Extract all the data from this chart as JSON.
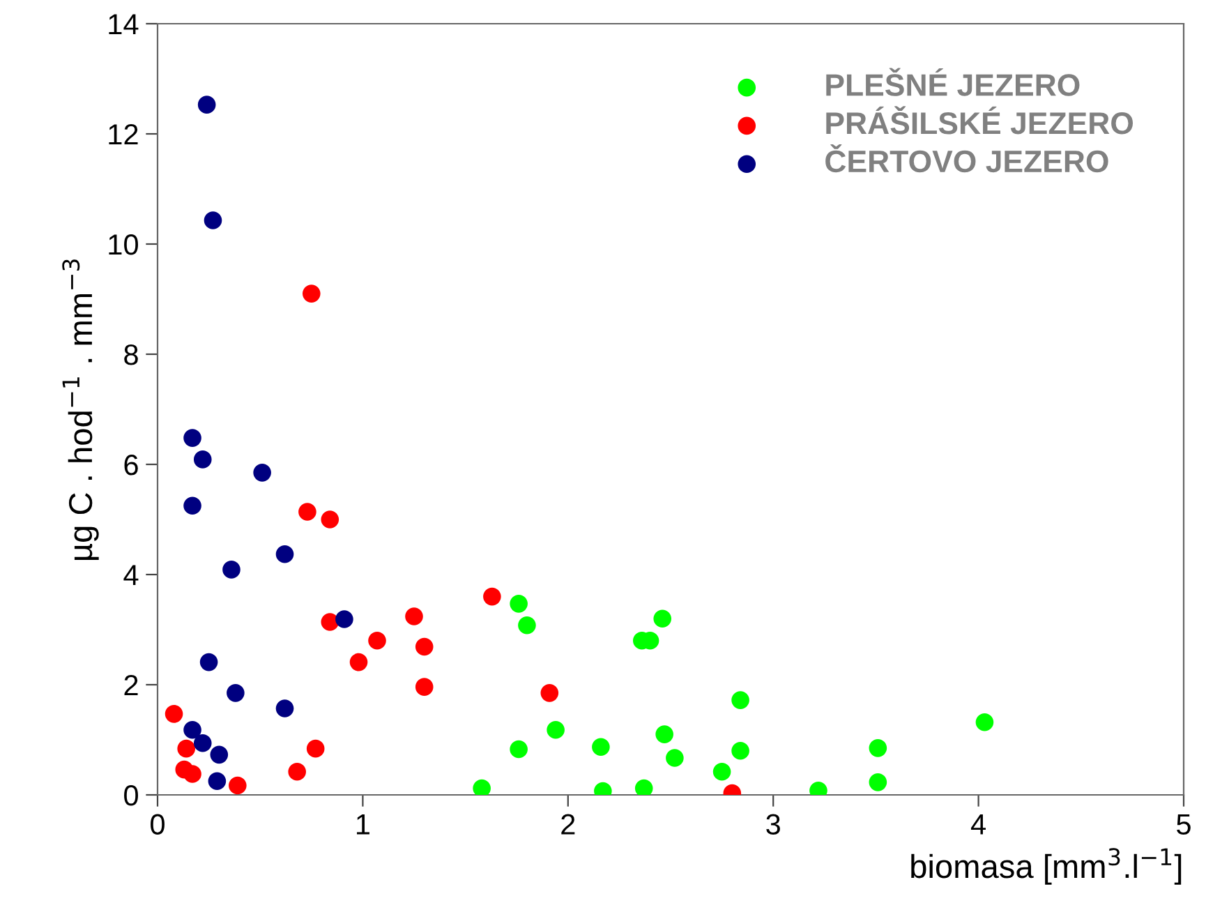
{
  "chart_data": {
    "type": "scatter",
    "xlabel": "biomasa [mm$^{3}$.l$^{−1}$]",
    "ylabel": "µg C . hod$^{−1}$ . mm$^{−3}$",
    "xlim": [
      0,
      5
    ],
    "xticks": [
      0,
      1,
      2,
      3,
      4,
      5
    ],
    "ylim": [
      0,
      14
    ],
    "yticks": [
      0,
      2,
      4,
      6,
      8,
      10,
      12,
      14
    ],
    "grid": false,
    "legend": "top right",
    "marker": "circle",
    "series": [
      {
        "name": "PLEŠNÉ JEZERO",
        "color": "#00ff00",
        "x": [
          1.58,
          1.76,
          1.76,
          1.8,
          1.94,
          2.16,
          2.17,
          2.37,
          2.36,
          2.4,
          2.46,
          2.47,
          2.52,
          2.75,
          2.84,
          2.84,
          3.22,
          3.51,
          3.51,
          4.03
        ],
        "values": [
          0.12,
          0.83,
          3.47,
          3.08,
          1.18,
          0.87,
          0.07,
          0.12,
          2.8,
          2.8,
          3.2,
          1.1,
          0.67,
          0.42,
          1.72,
          0.8,
          0.08,
          0.85,
          0.23,
          1.32
        ]
      },
      {
        "name": "PRÁŠILSKÉ JEZERO",
        "color": "#ff0000",
        "x": [
          0.08,
          0.14,
          0.13,
          0.17,
          0.39,
          0.68,
          0.77,
          0.75,
          0.73,
          0.84,
          0.84,
          0.98,
          1.07,
          1.25,
          1.3,
          1.3,
          1.63,
          1.91,
          2.8
        ],
        "values": [
          1.47,
          0.84,
          0.46,
          0.38,
          0.17,
          0.42,
          0.84,
          9.1,
          5.14,
          5.0,
          3.14,
          2.41,
          2.8,
          3.24,
          2.69,
          1.96,
          3.6,
          1.85,
          0.03
        ]
      },
      {
        "name": "ČERTOVO JEZERO",
        "color": "#000080",
        "x": [
          0.24,
          0.27,
          0.17,
          0.22,
          0.51,
          0.17,
          0.62,
          0.36,
          0.91,
          0.25,
          0.38,
          0.62,
          0.17,
          0.22,
          0.3,
          0.29
        ],
        "values": [
          12.53,
          10.43,
          6.48,
          6.09,
          5.85,
          5.25,
          4.37,
          4.09,
          3.19,
          2.41,
          1.85,
          1.57,
          1.18,
          0.94,
          0.73,
          0.25
        ]
      }
    ]
  }
}
